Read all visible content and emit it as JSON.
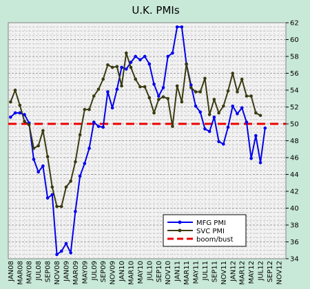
{
  "chart_data": {
    "type": "line",
    "title": "U.K. PMIs",
    "ylim": [
      34,
      62
    ],
    "yticks": [
      "34",
      "36",
      "38",
      "40",
      "42",
      "44",
      "46",
      "48",
      "50",
      "52",
      "54",
      "56",
      "58",
      "60",
      "62"
    ],
    "x_tick_labels": [
      "JAN08",
      "MAR08",
      "MAY08",
      "JUL08",
      "SEP08",
      "NOV08",
      "JAN09",
      "MAR09",
      "MAY09",
      "JUL09",
      "SEP09",
      "NOV09",
      "JAN10",
      "MAR10",
      "MAY10",
      "JUL10",
      "SEP10",
      "NOV10",
      "JAN11",
      "MAR11",
      "MAY11",
      "JUL11",
      "SEP11",
      "NOV11",
      "JAN12",
      "MAR12",
      "MAY12",
      "JUL12",
      "SEP12",
      "NOV12"
    ],
    "x_months": [
      "JAN08",
      "FEB08",
      "MAR08",
      "APR08",
      "MAY08",
      "JUN08",
      "JUL08",
      "AUG08",
      "SEP08",
      "OCT08",
      "NOV08",
      "DEC08",
      "JAN09",
      "FEB09",
      "MAR09",
      "APR09",
      "MAY09",
      "JUN09",
      "JUL09",
      "AUG09",
      "SEP09",
      "OCT09",
      "NOV09",
      "DEC09",
      "JAN10",
      "FEB10",
      "MAR10",
      "APR10",
      "MAY10",
      "JUN10",
      "JUL10",
      "AUG10",
      "SEP10",
      "OCT10",
      "NOV10",
      "DEC10",
      "JAN11",
      "FEB11",
      "MAR11",
      "APR11",
      "MAY11",
      "JUN11",
      "JUL11",
      "AUG11",
      "SEP11",
      "OCT11",
      "NOV11",
      "DEC11",
      "JAN12",
      "FEB12",
      "MAR12",
      "APR12",
      "MAY12",
      "JUN12",
      "JUL12",
      "AUG12",
      "SEP12",
      "OCT12",
      "NOV12",
      "DEC12"
    ],
    "series": [
      {
        "name": "MFG PMI",
        "color": "#0000ee",
        "values": [
          50.8,
          51.3,
          51.3,
          51.1,
          50.1,
          45.8,
          44.3,
          45.0,
          41.2,
          41.6,
          34.5,
          34.9,
          35.8,
          34.7,
          39.6,
          43.8,
          45.3,
          47.1,
          50.2,
          49.7,
          49.6,
          53.8,
          51.9,
          54.1,
          56.7,
          56.5,
          57.3,
          58.0,
          57.6,
          58.0,
          57.1,
          54.7,
          53.3,
          54.3,
          58.0,
          58.4,
          61.5,
          61.5,
          57.1,
          54.6,
          52.1,
          51.4,
          49.4,
          49.1,
          50.8,
          47.9,
          47.6,
          49.6,
          52.1,
          51.2,
          51.9,
          50.2,
          45.9,
          48.6,
          45.4,
          49.5
        ]
      },
      {
        "name": "SVC PMI",
        "color": "#3a3a10",
        "values": [
          52.6,
          54.0,
          52.2,
          50.3,
          49.9,
          47.1,
          47.4,
          49.2,
          46.1,
          42.5,
          40.2,
          40.2,
          42.5,
          43.2,
          45.5,
          48.7,
          51.7,
          51.7,
          53.3,
          54.1,
          55.3,
          57.0,
          56.7,
          56.8,
          54.5,
          58.4,
          56.7,
          55.3,
          54.4,
          54.4,
          53.1,
          51.3,
          52.9,
          53.2,
          53.0,
          49.7,
          54.5,
          52.6,
          57.1,
          54.3,
          53.8,
          53.8,
          55.4,
          51.1,
          52.9,
          51.3,
          52.1,
          53.9,
          56.0,
          53.8,
          55.3,
          53.3,
          53.3,
          51.3,
          51.0
        ]
      }
    ],
    "reference_line": {
      "name": "boom/bust",
      "value": 50,
      "color": "#ee0000"
    },
    "legend": {
      "position": "bottom-right",
      "entries": [
        "MFG PMI",
        "SVC PMI",
        "boom/bust"
      ]
    }
  }
}
